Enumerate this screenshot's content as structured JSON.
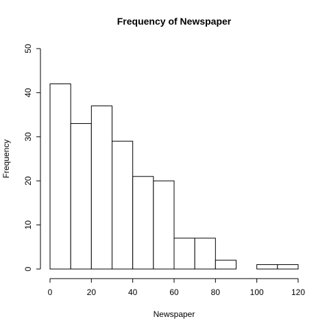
{
  "chart_data": {
    "type": "bar",
    "title": "Frequency of Newspaper",
    "xlabel": "Newspaper",
    "ylabel": "Frequency",
    "xlim": [
      0,
      120
    ],
    "ylim": [
      0,
      50
    ],
    "bin_edges": [
      0,
      10,
      20,
      30,
      40,
      50,
      60,
      70,
      80,
      90,
      100,
      110,
      120
    ],
    "values": [
      42,
      33,
      37,
      29,
      21,
      20,
      7,
      7,
      2,
      0,
      1,
      1
    ],
    "x_ticks": [
      0,
      20,
      40,
      60,
      80,
      100,
      120
    ],
    "y_ticks": [
      0,
      10,
      20,
      30,
      40,
      50
    ],
    "grid": false,
    "legend": "none",
    "colors": {
      "bar_fill": "#ffffff",
      "bar_stroke": "#000000"
    }
  }
}
